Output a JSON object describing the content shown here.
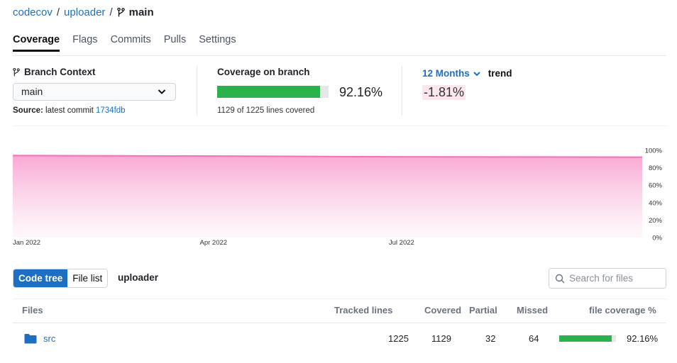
{
  "breadcrumb": {
    "org": "codecov",
    "repo": "uploader",
    "branch": "main",
    "sep1": "/",
    "sep2": "/"
  },
  "tabs": [
    {
      "label": "Coverage",
      "active": true
    },
    {
      "label": "Flags"
    },
    {
      "label": "Commits"
    },
    {
      "label": "Pulls"
    },
    {
      "label": "Settings"
    }
  ],
  "branch_context": {
    "title": "Branch Context",
    "selected": "main",
    "source_label": "Source:",
    "source_text": "latest commit",
    "commit": "1734fdb"
  },
  "coverage": {
    "title": "Coverage on branch",
    "percent_text": "92.16%",
    "percent": 92.16,
    "lines_text": "1129 of 1225 lines covered"
  },
  "trend": {
    "range": "12 Months",
    "word": "trend",
    "value": "-1.81%"
  },
  "chart_data": {
    "type": "area",
    "x": [
      "2022-01-01",
      "2022-04-01",
      "2022-07-01",
      "2022-10-31"
    ],
    "x_ticks": [
      "Jan 2022",
      "Apr 2022",
      "Jul 2022"
    ],
    "series": [
      {
        "values": [
          93.97,
          93.5,
          92.6,
          92.16
        ]
      }
    ],
    "y_ticks": [
      "100%",
      "80%",
      "60%",
      "40%",
      "20%",
      "0%"
    ],
    "ylim": [
      0,
      100
    ],
    "grid": false,
    "color": "#f472b6"
  },
  "files": {
    "toggle": {
      "code_tree": "Code tree",
      "file_list": "File list"
    },
    "repo": "uploader",
    "search_placeholder": "Search for files",
    "columns": {
      "files": "Files",
      "tracked": "Tracked lines",
      "covered": "Covered",
      "partial": "Partial",
      "missed": "Missed",
      "coverage": "file coverage %"
    },
    "rows": [
      {
        "name": "src",
        "tracked": "1225",
        "covered": "1129",
        "partial": "32",
        "missed": "64",
        "coverage_text": "92.16%",
        "coverage": 92.16
      }
    ]
  },
  "colors": {
    "link": "#1c6fc2",
    "green": "#2bb24c",
    "chart": "#f472b6"
  }
}
